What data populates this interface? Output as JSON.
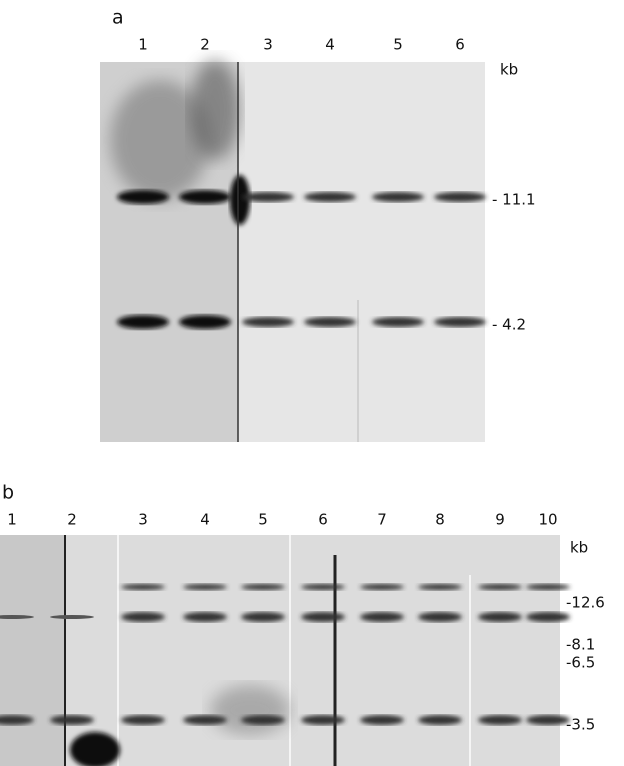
{
  "figure": {
    "panels": [
      {
        "label": "a",
        "lanes": [
          "1",
          "2",
          "3",
          "4",
          "5",
          "6"
        ],
        "unit": "kb",
        "markers": [
          "- 11.1",
          "- 4.2"
        ]
      },
      {
        "label": "b",
        "lanes": [
          "1",
          "2",
          "3",
          "4",
          "5",
          "6",
          "7",
          "8",
          "9",
          "10"
        ],
        "unit": "kb",
        "markers": [
          "-12.6",
          "-8.1",
          "-6.5",
          "-3.5"
        ]
      }
    ]
  }
}
